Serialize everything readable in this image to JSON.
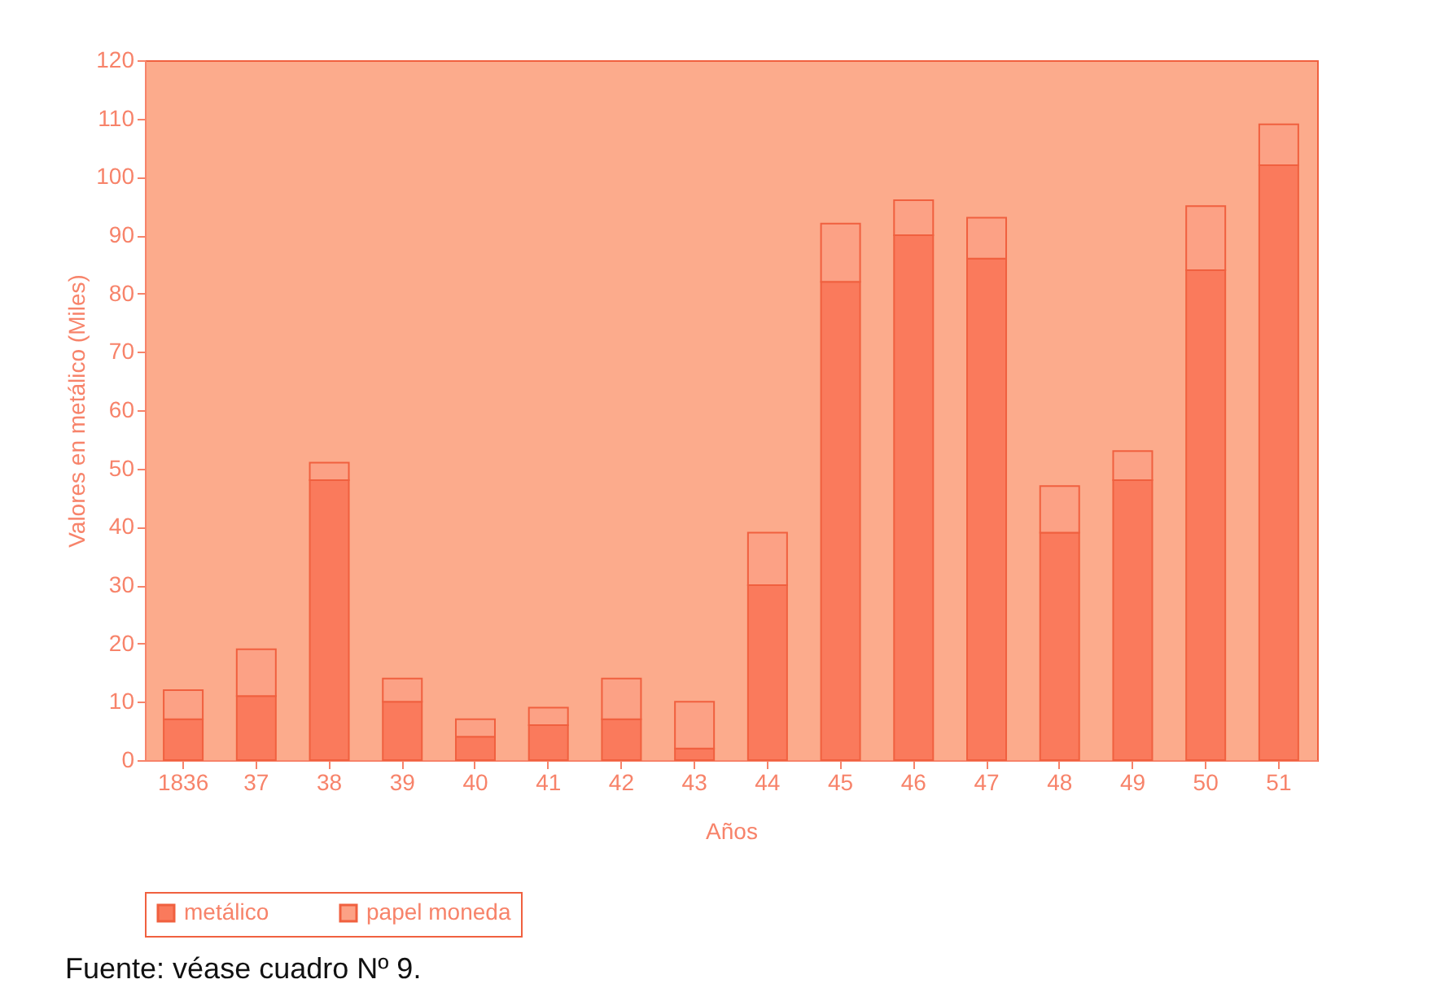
{
  "chart_data": {
    "type": "bar",
    "xlabel": "Años",
    "ylabel": "Valores en metálico (Miles)",
    "categories": [
      "1836",
      "37",
      "38",
      "39",
      "40",
      "41",
      "42",
      "43",
      "44",
      "45",
      "46",
      "47",
      "48",
      "49",
      "50",
      "51"
    ],
    "series": [
      {
        "name": "metálico",
        "color": "#fa7a5c",
        "values": [
          7,
          11,
          48,
          10,
          4,
          6,
          7,
          2,
          30,
          82,
          90,
          86,
          39,
          48,
          84,
          102
        ]
      },
      {
        "name": "papel moneda",
        "color": "#fca185",
        "values": [
          5,
          8,
          3,
          4,
          3,
          3,
          7,
          8,
          9,
          10,
          6,
          7,
          8,
          5,
          11,
          7
        ]
      }
    ],
    "stacked": true,
    "ylim": [
      0,
      120
    ],
    "yticks": [
      0,
      10,
      20,
      30,
      40,
      50,
      60,
      70,
      80,
      90,
      100,
      110,
      120
    ],
    "grid": false,
    "legend": "bottom left",
    "annotations": [
      "Fuente: véase cuadro Nº 9."
    ]
  }
}
